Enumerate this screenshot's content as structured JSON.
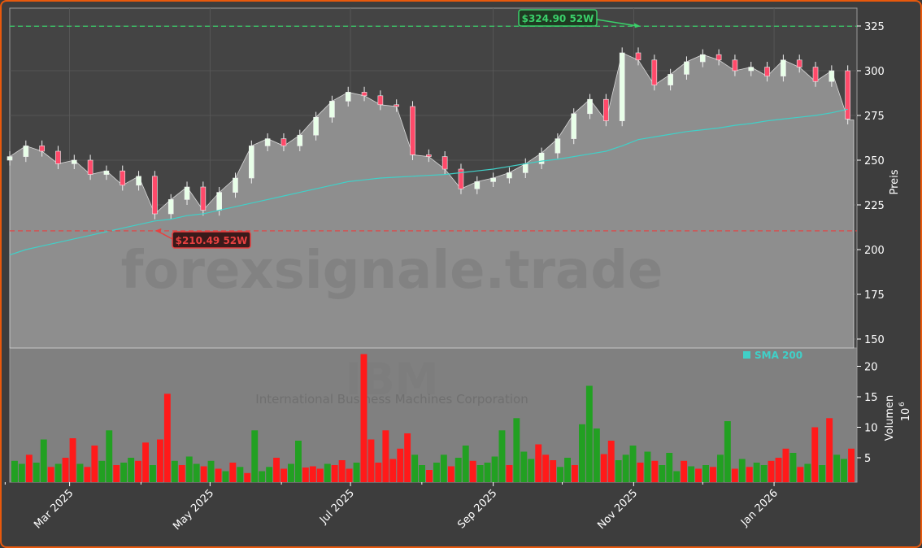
{
  "colors": {
    "background": "#3d3d3d",
    "panel": "#808080",
    "border": "#e8590c",
    "up": "#22a022",
    "down": "#ff1a1a",
    "sma": "#40d0c8",
    "high_line": "#3ad06a",
    "low_line": "#e84040",
    "area": "#8e8e8e"
  },
  "watermark": {
    "site": "forexsignale.trade",
    "ticker": "IBM",
    "company": "International Business Machines Corporation"
  },
  "chart_data": {
    "type": "line",
    "price_panel": {
      "ylabel": "Preis",
      "ylim": [
        145,
        335
      ],
      "yticks": [
        150,
        175,
        200,
        225,
        250,
        275,
        300,
        325
      ],
      "grid": true,
      "dates": [
        "2025-02-03",
        "2025-02-10",
        "2025-02-17",
        "2025-02-24",
        "2025-03-03",
        "2025-03-10",
        "2025-03-17",
        "2025-03-24",
        "2025-03-31",
        "2025-04-07",
        "2025-04-14",
        "2025-04-21",
        "2025-04-28",
        "2025-05-05",
        "2025-05-12",
        "2025-05-19",
        "2025-05-26",
        "2025-06-02",
        "2025-06-09",
        "2025-06-16",
        "2025-06-23",
        "2025-06-30",
        "2025-07-07",
        "2025-07-14",
        "2025-07-21",
        "2025-07-28",
        "2025-08-04",
        "2025-08-11",
        "2025-08-18",
        "2025-08-25",
        "2025-09-01",
        "2025-09-08",
        "2025-09-15",
        "2025-09-22",
        "2025-09-29",
        "2025-10-06",
        "2025-10-13",
        "2025-10-20",
        "2025-10-27",
        "2025-11-03",
        "2025-11-10",
        "2025-11-17",
        "2025-11-24",
        "2025-12-01",
        "2025-12-08",
        "2025-12-15",
        "2025-12-22",
        "2025-12-29",
        "2026-01-05",
        "2026-01-12",
        "2026-01-19",
        "2026-01-26",
        "2026-02-02"
      ],
      "close": [
        252,
        258,
        255,
        248,
        250,
        242,
        244,
        236,
        241,
        220,
        228,
        235,
        222,
        232,
        240,
        258,
        262,
        258,
        264,
        274,
        283,
        288,
        286,
        281,
        280,
        253,
        252,
        245,
        234,
        238,
        240,
        243,
        248,
        254,
        262,
        276,
        284,
        272,
        310,
        306,
        292,
        298,
        305,
        309,
        306,
        300,
        302,
        297,
        306,
        302,
        294,
        300,
        273
      ],
      "sma200": [
        197,
        200,
        202,
        204,
        206,
        208,
        210,
        212,
        214,
        216,
        217,
        219,
        220,
        222,
        224,
        226,
        228,
        230,
        232,
        234,
        236,
        238,
        239,
        240,
        240.5,
        241,
        241.5,
        242,
        243,
        244,
        245,
        246.5,
        248,
        249.5,
        250.5,
        252,
        253.5,
        255,
        258,
        261.5,
        263,
        264.5,
        266,
        267,
        268,
        269.5,
        270.5,
        272,
        273,
        274,
        275,
        276.5,
        278.5
      ],
      "last_price_level": 272.5,
      "high_52w": {
        "value": 324.9,
        "label": "$324.90 52W",
        "date": "2025-11-04"
      },
      "low_52w": {
        "value": 210.49,
        "label": "$210.49 52W",
        "date": "2025-04-07"
      },
      "legend": {
        "label": "SMA 200",
        "placement": "top-right of volume panel"
      }
    },
    "volume_panel": {
      "ylabel": "Volumen",
      "unit_label": "10",
      "unit_exp": "6",
      "ylim": [
        1,
        23
      ],
      "yticks": [
        5,
        10,
        15,
        20
      ],
      "values": [
        4.5,
        4.0,
        5.5,
        4.2,
        8.0,
        3.5,
        4.0,
        5.0,
        8.2,
        4.0,
        3.5,
        7.0,
        4.5,
        9.5,
        3.8,
        4.2,
        5.0,
        4.5,
        7.5,
        3.8,
        8.0,
        15.5,
        4.5,
        3.8,
        5.2,
        4.0,
        3.6,
        4.5,
        3.2,
        2.8,
        4.2,
        3.5,
        2.5,
        9.5,
        2.8,
        3.5,
        5.0,
        3.2,
        4.0,
        7.8,
        3.4,
        3.6,
        3.2,
        4.0,
        3.8,
        4.6,
        3.2,
        4.2,
        22.0,
        8.0,
        4.2,
        9.5,
        4.8,
        6.5,
        9.0,
        5.5,
        3.8,
        3.0,
        4.2,
        5.5,
        3.6,
        5.0,
        7.0,
        4.5,
        3.8,
        4.2,
        5.2,
        9.5,
        3.8,
        11.5,
        6.0,
        4.8,
        7.2,
        5.5,
        4.6,
        3.5,
        5.0,
        3.8,
        10.5,
        16.8,
        9.8,
        5.6,
        7.8,
        4.6,
        5.5,
        7.0,
        4.2,
        6.0,
        4.5,
        3.8,
        5.8,
        2.8,
        4.5,
        3.6,
        3.2,
        3.8,
        3.5,
        5.5,
        11.0,
        3.2,
        4.8,
        3.5,
        4.2,
        3.8,
        4.5,
        5.0,
        6.5,
        5.8,
        3.5,
        4.0,
        10.0,
        3.8,
        11.5,
        5.5,
        4.8,
        6.5
      ],
      "directions": [
        "u",
        "u",
        "d",
        "u",
        "u",
        "d",
        "u",
        "d",
        "d",
        "u",
        "d",
        "d",
        "u",
        "u",
        "d",
        "u",
        "u",
        "d",
        "d",
        "u",
        "d",
        "d",
        "u",
        "d",
        "u",
        "u",
        "d",
        "u",
        "d",
        "u",
        "d",
        "u",
        "d",
        "u",
        "u",
        "u",
        "d",
        "d",
        "u",
        "u",
        "d",
        "d",
        "d",
        "u",
        "d",
        "d",
        "d",
        "u",
        "d",
        "d",
        "d",
        "d",
        "d",
        "d",
        "d",
        "u",
        "u",
        "d",
        "u",
        "u",
        "d",
        "u",
        "u",
        "d",
        "u",
        "u",
        "u",
        "u",
        "d",
        "u",
        "u",
        "u",
        "d",
        "d",
        "d",
        "u",
        "u",
        "d",
        "u",
        "u",
        "u",
        "d",
        "d",
        "u",
        "u",
        "u",
        "d",
        "u",
        "d",
        "u",
        "u",
        "u",
        "d",
        "u",
        "d",
        "u",
        "d",
        "u",
        "u",
        "d",
        "u",
        "d",
        "u",
        "u",
        "d",
        "d",
        "d",
        "u",
        "d",
        "u",
        "d",
        "u",
        "d",
        "u",
        "u",
        "d"
      ]
    },
    "x_axis": {
      "tick_labels": [
        "Mar 2025",
        "May 2025",
        "Jul 2025",
        "Sep 2025",
        "Nov 2025",
        "Jan 2026"
      ],
      "tick_dates": [
        "2025-03-01",
        "2025-05-01",
        "2025-07-01",
        "2025-09-01",
        "2025-11-01",
        "2026-01-01"
      ],
      "start": "2025-02-03",
      "end": "2026-02-06"
    }
  }
}
